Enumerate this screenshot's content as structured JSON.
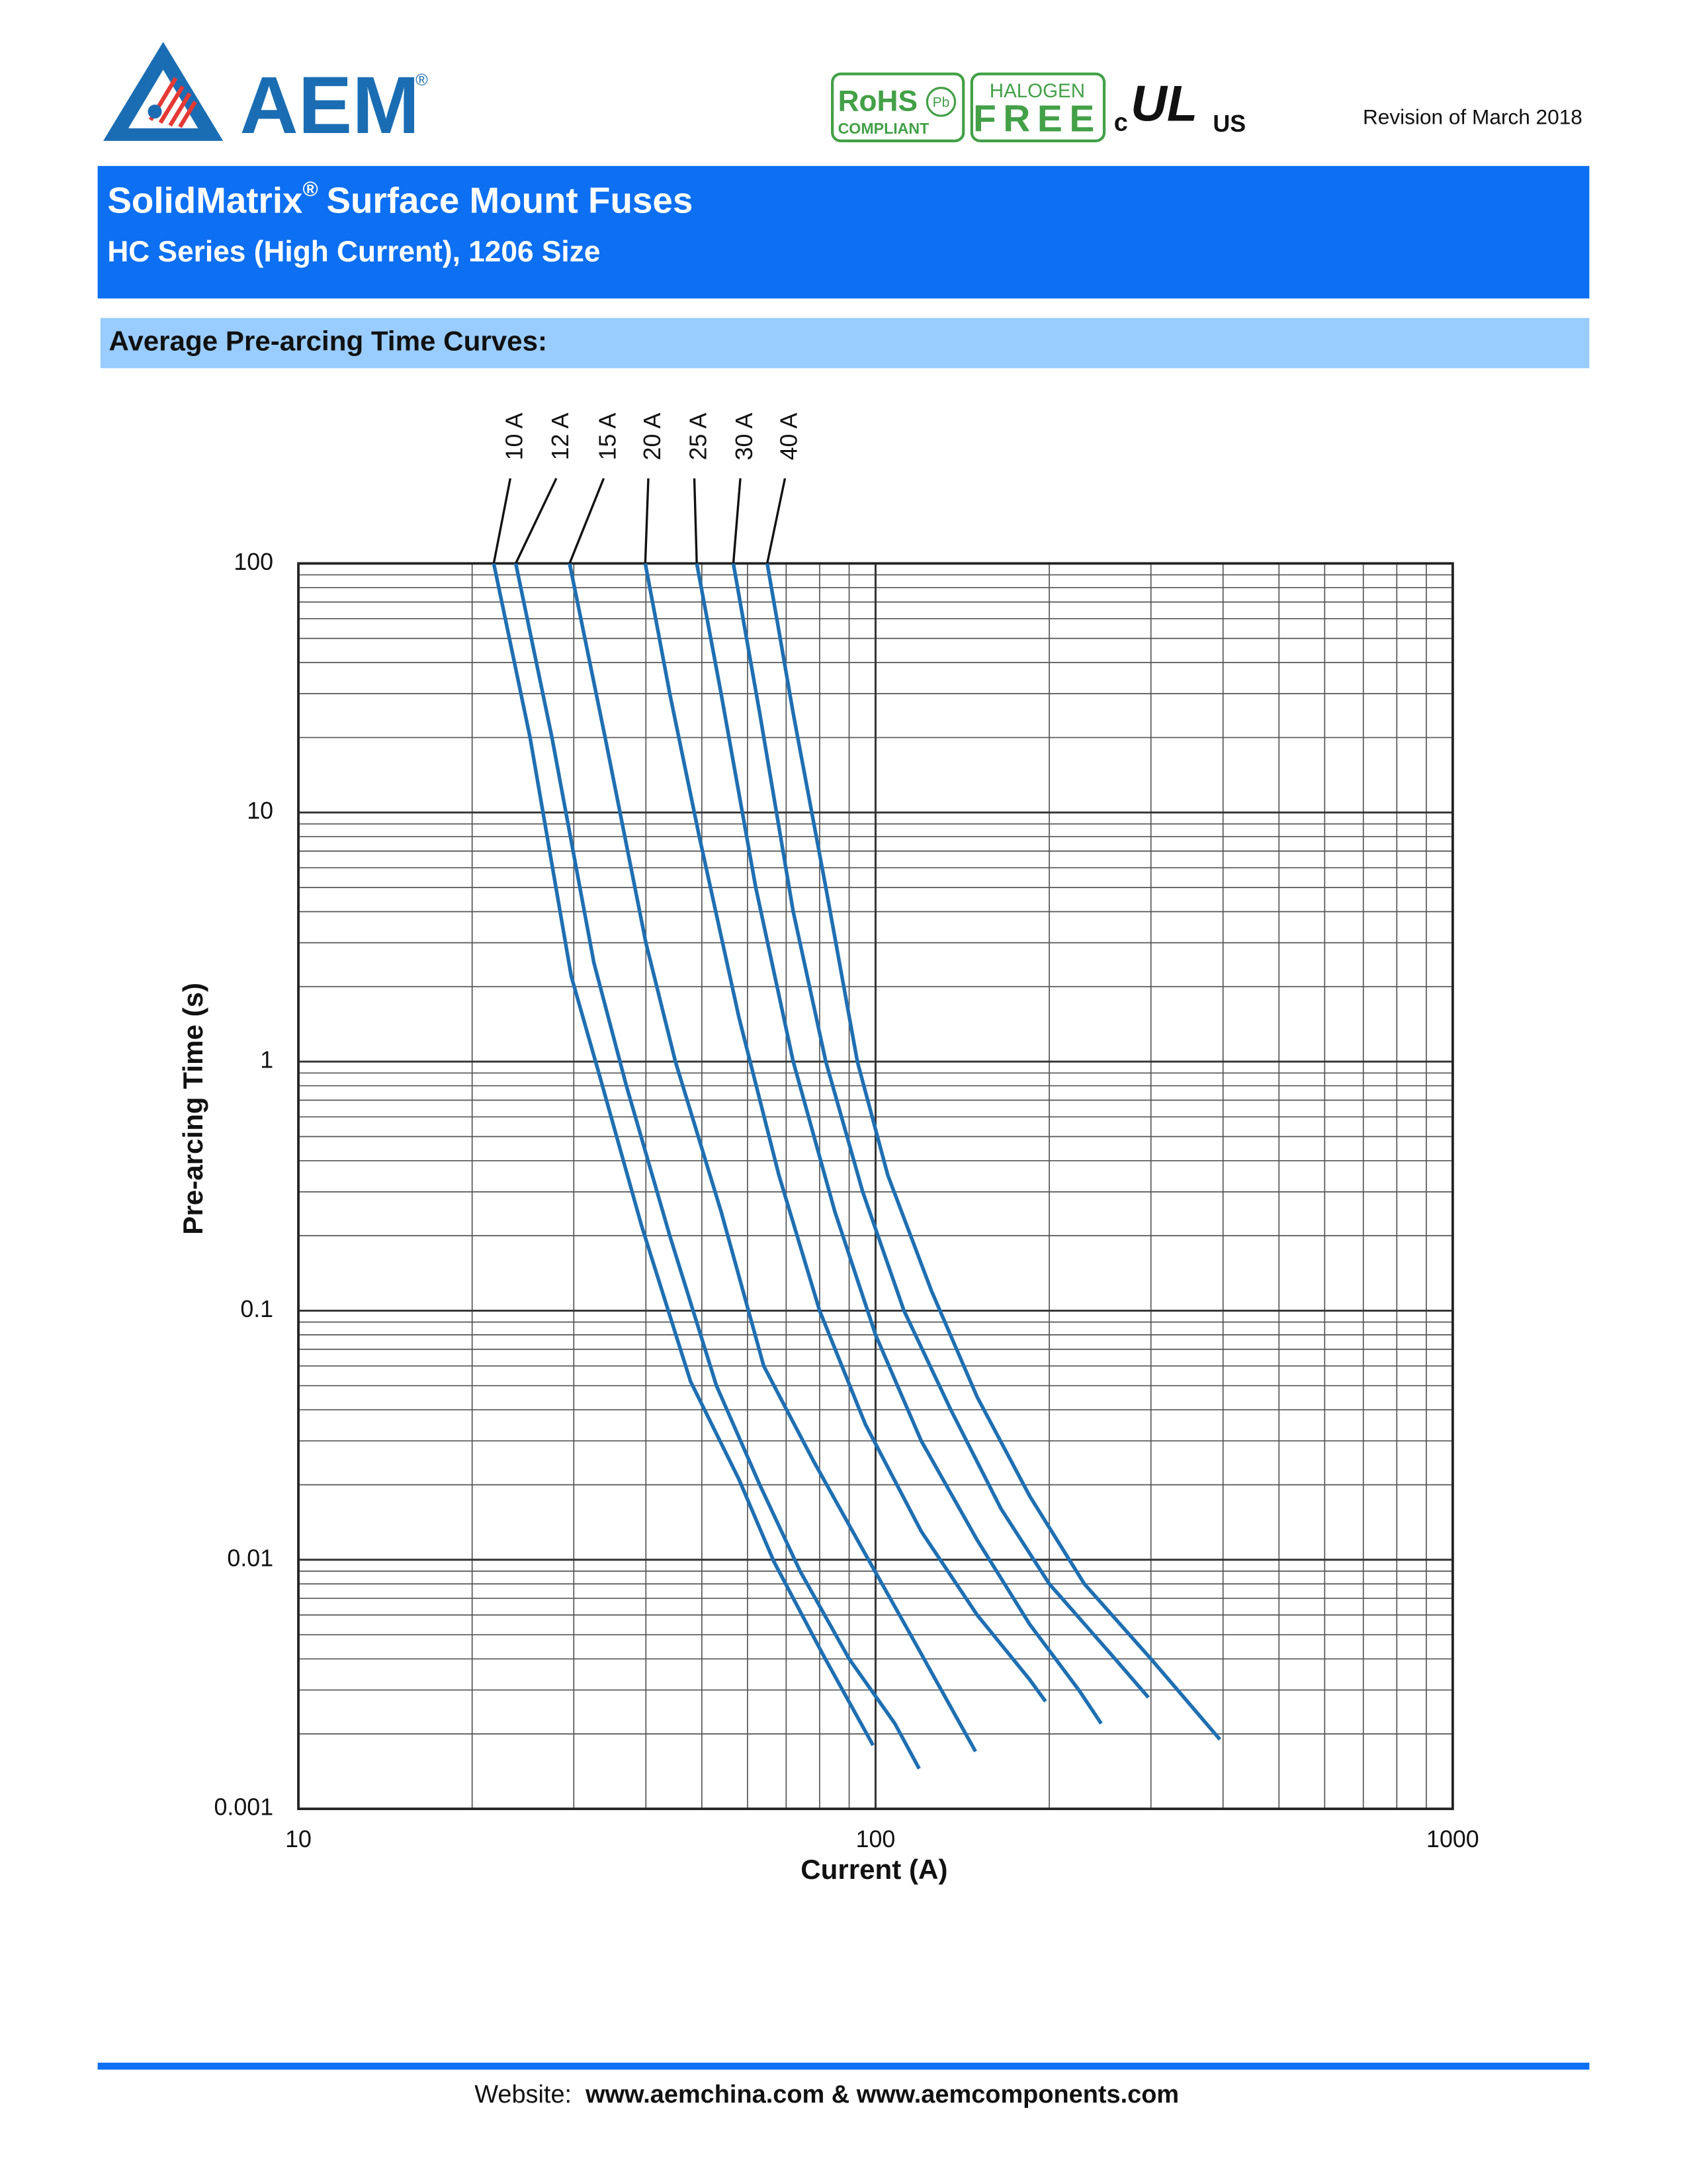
{
  "header": {
    "logo": "AEM",
    "logo_mark": "®",
    "rohs": "RoHS",
    "rohs_sub": "COMPLIANT",
    "pb": "Pb",
    "halogen": "HALOGEN",
    "free": "FREE",
    "ul_c": "c",
    "ul": "UL",
    "ul_us": "US",
    "revision": "Revision of March 2018"
  },
  "title": {
    "main": "SolidMatrix",
    "mark": "®",
    "rest": "Surface Mount Fuses"
  },
  "subtitle": "HC Series (High Current), 1206 Size",
  "section": "Average Pre-arcing Time Curves:",
  "chart_data": {
    "type": "line",
    "x_label": "Current (A)",
    "y_label": "Pre-arcing Time (s)",
    "xlog": true,
    "ylog": true,
    "xlim": [
      10,
      1000
    ],
    "ylim": [
      0.001,
      100
    ],
    "xticks": [
      10,
      100,
      1000
    ],
    "yticks": [
      0.001,
      0.01,
      0.1,
      1,
      10,
      100
    ],
    "grid": true,
    "minor_grid": true,
    "series": [
      {
        "name": "10 A",
        "color": "#1f6fb2",
        "x": [
          21.8,
          25.2,
          29.7,
          33.2,
          39.3,
          47.8,
          58,
          66.7,
          80.9,
          99
        ],
        "values": [
          100,
          20,
          2.2,
          0.89,
          0.22,
          0.052,
          0.021,
          0.0098,
          0.0042,
          0.0018
        ]
      },
      {
        "name": "12 A",
        "color": "#1f6fb2",
        "x": [
          23.8,
          27.5,
          32.5,
          37,
          44,
          53,
          63,
          74,
          90,
          108,
          119
        ],
        "values": [
          100,
          20,
          2.5,
          0.8,
          0.2,
          0.05,
          0.02,
          0.009,
          0.004,
          0.0022,
          0.00145
        ]
      },
      {
        "name": "15 A",
        "color": "#1f6fb2",
        "x": [
          29.5,
          34,
          40,
          45,
          54,
          64,
          78,
          95,
          115,
          140,
          149
        ],
        "values": [
          100,
          20,
          3,
          1,
          0.25,
          0.06,
          0.025,
          0.011,
          0.005,
          0.0022,
          0.0017
        ]
      },
      {
        "name": "20 A",
        "color": "#1f6fb2",
        "x": [
          39.9,
          44,
          49.5,
          58,
          68,
          80,
          96,
          120,
          150,
          185,
          197
        ],
        "values": [
          100,
          30,
          8,
          1.5,
          0.35,
          0.1,
          0.035,
          0.013,
          0.006,
          0.0033,
          0.0027
        ]
      },
      {
        "name": "25 A",
        "color": "#1f6fb2",
        "x": [
          49,
          54,
          62,
          72,
          85,
          100,
          120,
          150,
          185,
          225,
          246
        ],
        "values": [
          100,
          30,
          5,
          1,
          0.25,
          0.08,
          0.03,
          0.012,
          0.0055,
          0.003,
          0.0022
        ]
      },
      {
        "name": "30 A",
        "color": "#1f6fb2",
        "x": [
          56.7,
          63,
          72,
          82,
          95,
          112,
          135,
          165,
          200,
          260,
          297
        ],
        "values": [
          100,
          25,
          4,
          1,
          0.3,
          0.1,
          0.04,
          0.016,
          0.008,
          0.004,
          0.0028
        ]
      },
      {
        "name": "40 A",
        "color": "#1f6fb2",
        "x": [
          64.9,
          72,
          82,
          93,
          105,
          125,
          150,
          185,
          230,
          300,
          395
        ],
        "values": [
          100,
          25,
          5,
          1,
          0.35,
          0.12,
          0.045,
          0.018,
          0.008,
          0.004,
          0.0019
        ]
      }
    ]
  },
  "footer": {
    "label": "Website:",
    "sites": "www.aemchina.com & www.aemcomponents.com"
  }
}
